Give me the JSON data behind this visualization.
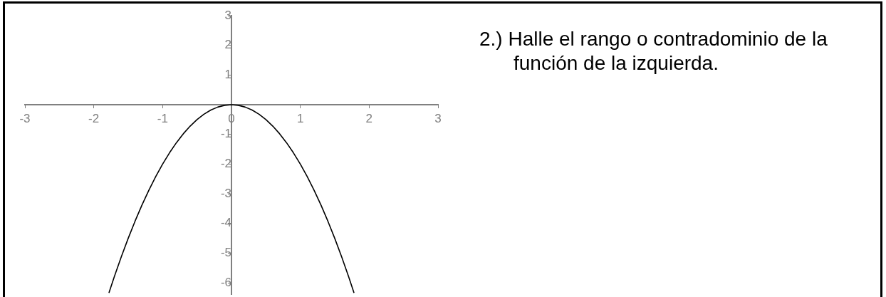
{
  "chart_data": {
    "type": "line",
    "x": [
      -1.78,
      -1.7,
      -1.6,
      -1.5,
      -1.4,
      -1.3,
      -1.2,
      -1.1,
      -1,
      -0.9,
      -0.8,
      -0.7,
      -0.6,
      -0.5,
      -0.4,
      -0.3,
      -0.2,
      -0.1,
      0,
      0.1,
      0.2,
      0.3,
      0.4,
      0.5,
      0.6,
      0.7,
      0.8,
      0.9,
      1,
      1.1,
      1.2,
      1.3,
      1.4,
      1.5,
      1.6,
      1.7,
      1.78
    ],
    "values": [
      -6.34,
      -5.78,
      -5.12,
      -4.5,
      -3.92,
      -3.38,
      -2.88,
      -2.42,
      -2,
      -1.62,
      -1.28,
      -0.98,
      -0.72,
      -0.5,
      -0.32,
      -0.18,
      -0.08,
      -0.02,
      0,
      -0.02,
      -0.08,
      -0.18,
      -0.32,
      -0.5,
      -0.72,
      -0.98,
      -1.28,
      -1.62,
      -2,
      -2.42,
      -2.88,
      -3.38,
      -3.92,
      -4.5,
      -5.12,
      -5.78,
      -6.34
    ],
    "color": "#000000",
    "marker": "none",
    "xlim": [
      -3,
      3
    ],
    "ylim": [
      -6.4,
      3
    ],
    "xticks": [
      -3,
      -2,
      -1,
      0,
      1,
      2,
      3
    ],
    "yticks": [
      -6,
      -5,
      -4,
      -3,
      -2,
      -1,
      1,
      2,
      3
    ],
    "annotations": [
      "2.) Halle el rango o contradominio de la función de la izquierda."
    ]
  }
}
